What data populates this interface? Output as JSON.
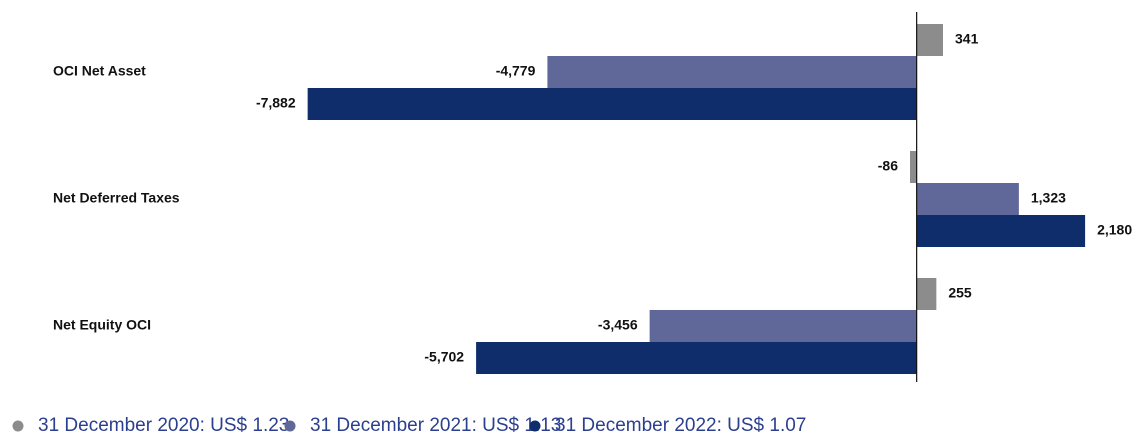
{
  "chart_data": {
    "type": "hbar",
    "categories": [
      "OCI Net Asset",
      "Net Deferred Taxes",
      "Net Equity OCI"
    ],
    "series": [
      {
        "name": "31 December 2020: US$ 1.23",
        "color": "#8c8c8c",
        "values": [
          341,
          -86,
          255
        ],
        "value_labels": [
          "341",
          "-86",
          "255"
        ]
      },
      {
        "name": "31 December 2021: US$ 1.13",
        "color": "#5f6899",
        "values": [
          -4779,
          1323,
          -3456
        ],
        "value_labels": [
          "-4,779",
          "1,323",
          "-3,456"
        ]
      },
      {
        "name": "31 December 2022: US$ 1.07",
        "color": "#0f2c6b",
        "values": [
          -7882,
          2180,
          -5702
        ],
        "value_labels": [
          "-7,882",
          "2,180",
          "-5,702"
        ]
      }
    ],
    "xlim": [
      -10000,
      2800
    ]
  }
}
